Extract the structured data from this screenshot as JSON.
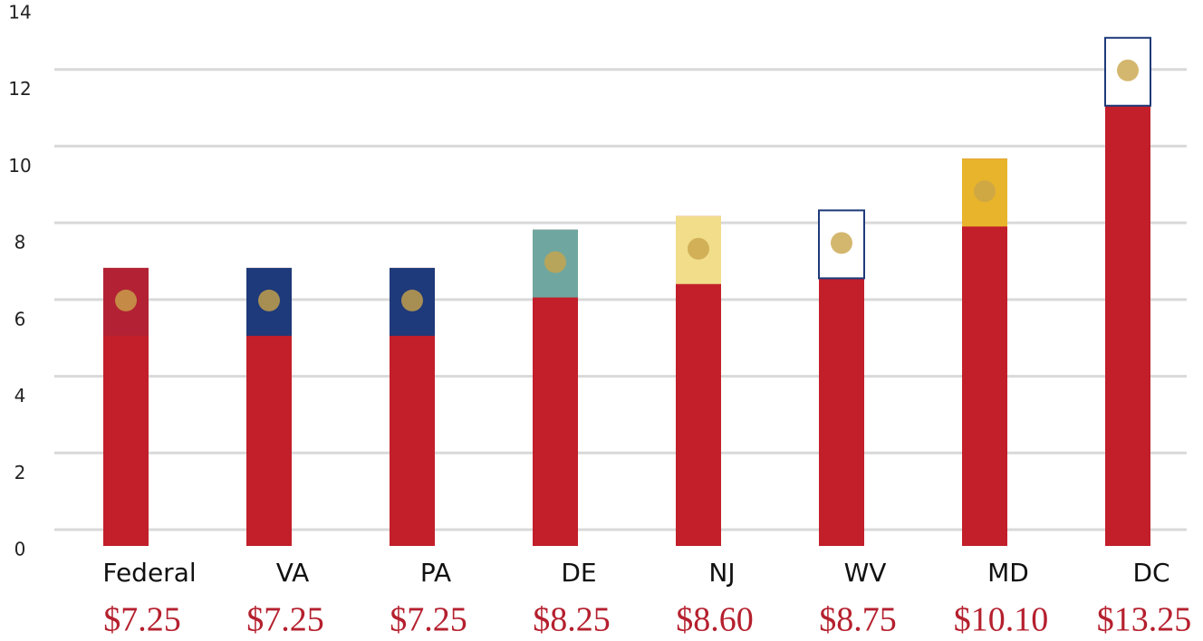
{
  "chart_data": {
    "type": "bar",
    "categories": [
      "Federal",
      "VA",
      "PA",
      "DE",
      "NJ",
      "WV",
      "MD",
      "DC"
    ],
    "values": [
      7.25,
      7.25,
      7.25,
      8.25,
      8.6,
      8.75,
      10.1,
      13.25
    ],
    "value_labels": [
      "$7.25",
      "$7.25",
      "$7.25",
      "$8.25",
      "$8.60",
      "$8.75",
      "$10.10",
      "$13.25"
    ],
    "color": "#c21f2a",
    "flag_colors": [
      "#b22234",
      "#1f3a7a",
      "#1f3a7a",
      "#6fa7a0",
      "#f1dd8a",
      "#ffffff",
      "#e8b42c",
      "#ffffff"
    ],
    "ylim": [
      0,
      14
    ],
    "yticks": [
      0,
      2,
      4,
      6,
      8,
      10,
      12,
      14
    ],
    "grid": true
  }
}
